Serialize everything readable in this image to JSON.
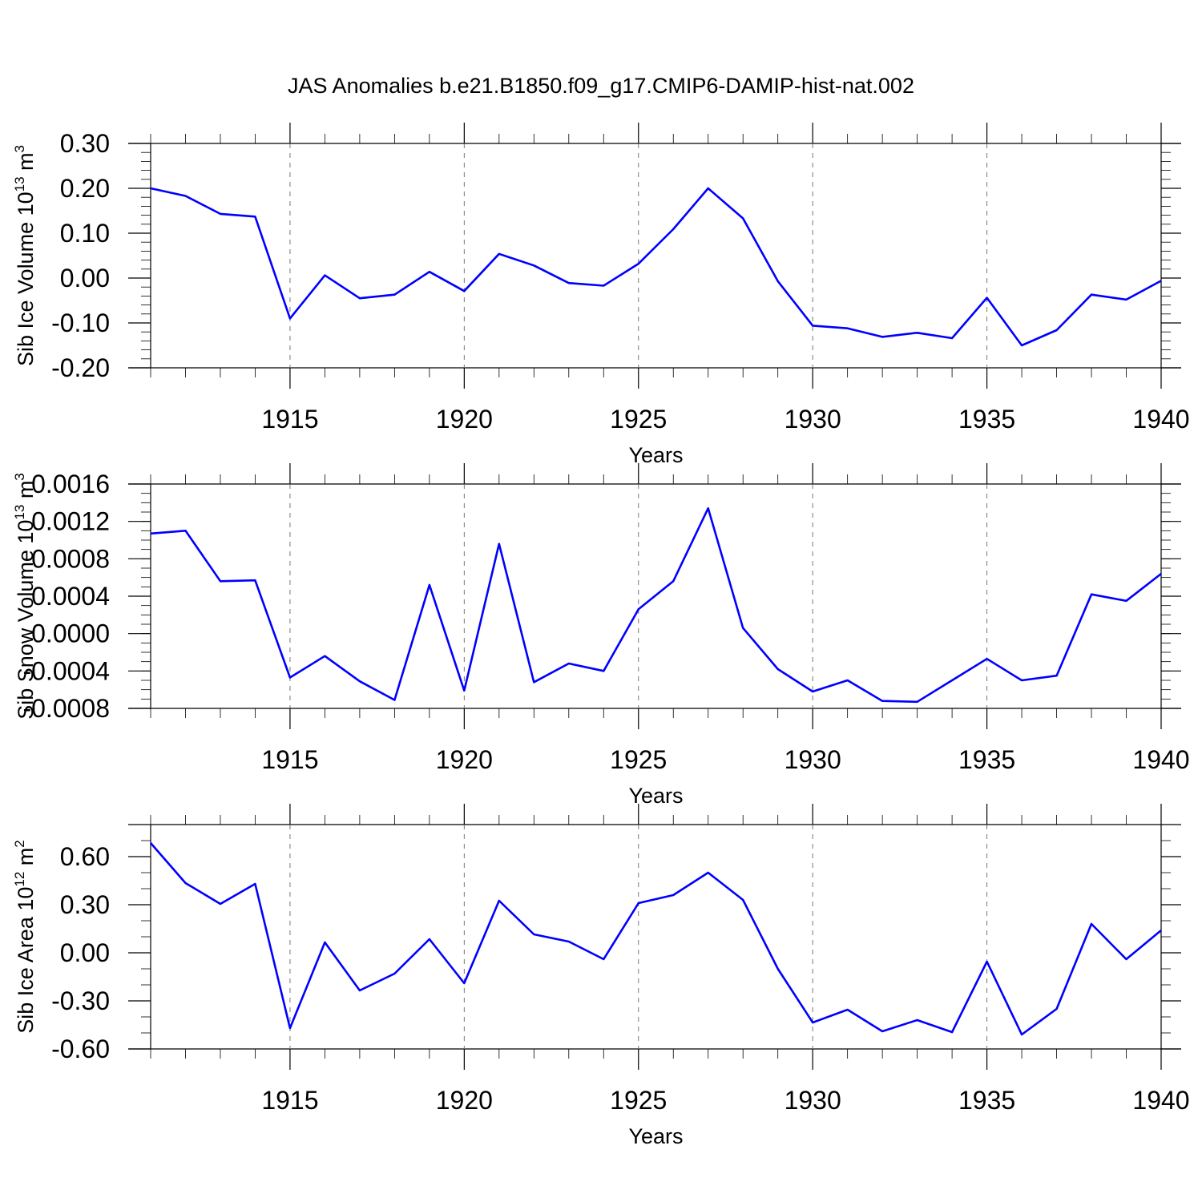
{
  "page_title": "JAS Anomalies b.e21.B1850.f09_g17.CMIP6-DAMIP-hist-nat.002",
  "colors": {
    "series": "#0000ff",
    "grid": "#777777",
    "axes": "#000000"
  },
  "chart_data": [
    {
      "type": "line",
      "ylabel": "Sib Ice Volume 10",
      "ylabel_exp": "13",
      "ylabel_unit": " m",
      "ylabel_unit_exp": "3",
      "xlabel": "Years",
      "xlim": [
        1911,
        1940
      ],
      "ylim": [
        -0.2,
        0.3
      ],
      "xticks": [
        "1915",
        "1920",
        "1925",
        "1930",
        "1935",
        "1940"
      ],
      "xtick_values": [
        1915,
        1920,
        1925,
        1930,
        1935,
        1940
      ],
      "yticks": [
        "0.30",
        "0.20",
        "0.10",
        "0.00",
        "-0.10",
        "-0.20"
      ],
      "ytick_values": [
        0.3,
        0.2,
        0.1,
        0.0,
        -0.1,
        -0.2
      ],
      "y_minor_step": 0.02,
      "x": [
        1911,
        1912,
        1913,
        1914,
        1915,
        1916,
        1917,
        1918,
        1919,
        1920,
        1921,
        1922,
        1923,
        1924,
        1925,
        1926,
        1927,
        1928,
        1929,
        1930,
        1931,
        1932,
        1933,
        1934,
        1935,
        1936,
        1937,
        1938,
        1939,
        1940
      ],
      "values": [
        0.2,
        0.183,
        0.143,
        0.137,
        -0.09,
        0.006,
        -0.045,
        -0.037,
        0.014,
        -0.029,
        0.054,
        0.028,
        -0.011,
        -0.017,
        0.032,
        0.109,
        0.2,
        0.133,
        -0.007,
        -0.106,
        -0.112,
        -0.131,
        -0.122,
        -0.134,
        -0.044,
        -0.15,
        -0.116,
        -0.037,
        -0.048,
        -0.006
      ]
    },
    {
      "type": "line",
      "ylabel": "Sib Snow Volume 10",
      "ylabel_exp": "13",
      "ylabel_unit": " m",
      "ylabel_unit_exp": "3",
      "xlabel": "Years",
      "xlim": [
        1911,
        1940
      ],
      "ylim": [
        -0.0008,
        0.0016
      ],
      "xticks": [
        "1915",
        "1920",
        "1925",
        "1930",
        "1935",
        "1940"
      ],
      "xtick_values": [
        1915,
        1920,
        1925,
        1930,
        1935,
        1940
      ],
      "yticks": [
        "0.0016",
        "0.0012",
        "0.0008",
        "0.0004",
        "0.0000",
        "-0.0004",
        "-0.0008"
      ],
      "ytick_values": [
        0.0016,
        0.0012,
        0.0008,
        0.0004,
        0.0,
        -0.0004,
        -0.0008
      ],
      "y_minor_step": 0.0001,
      "x": [
        1911,
        1912,
        1913,
        1914,
        1915,
        1916,
        1917,
        1918,
        1919,
        1920,
        1921,
        1922,
        1923,
        1924,
        1925,
        1926,
        1927,
        1928,
        1929,
        1930,
        1931,
        1932,
        1933,
        1934,
        1935,
        1936,
        1937,
        1938,
        1939,
        1940
      ],
      "values": [
        0.00107,
        0.0011,
        0.00056,
        0.00057,
        -0.00047,
        -0.00024,
        -0.00051,
        -0.00071,
        0.00052,
        -0.00061,
        0.00096,
        -0.00052,
        -0.00032,
        -0.0004,
        0.00026,
        0.00056,
        0.00134,
        6e-05,
        -0.00038,
        -0.00062,
        -0.0005,
        -0.00072,
        -0.00073,
        -0.0005,
        -0.00027,
        -0.0005,
        -0.00045,
        0.00042,
        0.00035,
        0.00064
      ]
    },
    {
      "type": "line",
      "ylabel": "Sib Ice Area 10",
      "ylabel_exp": "12",
      "ylabel_unit": " m",
      "ylabel_unit_exp": "2",
      "xlabel": "Years",
      "xlim": [
        1911,
        1940
      ],
      "ylim": [
        -0.6,
        0.8
      ],
      "xticks": [
        "1915",
        "1920",
        "1925",
        "1930",
        "1935",
        "1940"
      ],
      "xtick_values": [
        1915,
        1920,
        1925,
        1930,
        1935,
        1940
      ],
      "yticks": [
        "0.60",
        "0.30",
        "0.00",
        "-0.30",
        "-0.60"
      ],
      "ytick_values": [
        0.6,
        0.3,
        0.0,
        -0.3,
        -0.6
      ],
      "y_minor_step": 0.1,
      "x": [
        1911,
        1912,
        1913,
        1914,
        1915,
        1916,
        1917,
        1918,
        1919,
        1920,
        1921,
        1922,
        1923,
        1924,
        1925,
        1926,
        1927,
        1928,
        1929,
        1930,
        1931,
        1932,
        1933,
        1934,
        1935,
        1936,
        1937,
        1938,
        1939,
        1940
      ],
      "values": [
        0.685,
        0.435,
        0.305,
        0.43,
        -0.47,
        0.065,
        -0.235,
        -0.13,
        0.085,
        -0.19,
        0.325,
        0.115,
        0.07,
        -0.04,
        0.31,
        0.36,
        0.5,
        0.33,
        -0.1,
        -0.435,
        -0.355,
        -0.49,
        -0.42,
        -0.495,
        -0.055,
        -0.51,
        -0.35,
        0.18,
        -0.04,
        0.14
      ]
    }
  ]
}
